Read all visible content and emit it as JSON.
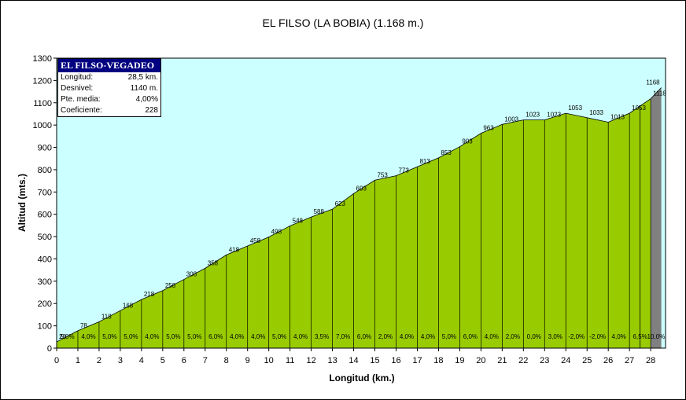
{
  "chart_data": {
    "type": "area",
    "title": "EL FILSO (LA BOBIA) (1.168 m.)",
    "xlabel": "Longitud (km.)",
    "ylabel": "Altitud (mts.)",
    "xlim": [
      0,
      28.7
    ],
    "ylim": [
      0,
      1300
    ],
    "x_ticks": [
      0,
      1,
      2,
      3,
      4,
      5,
      6,
      7,
      8,
      9,
      10,
      11,
      12,
      13,
      14,
      15,
      16,
      17,
      18,
      19,
      20,
      21,
      22,
      23,
      24,
      25,
      26,
      27,
      28
    ],
    "y_ticks": [
      0,
      100,
      200,
      300,
      400,
      500,
      600,
      700,
      800,
      900,
      1000,
      1100,
      1200,
      1300
    ],
    "profile": [
      {
        "km": 0,
        "alt": 28
      },
      {
        "km": 1,
        "alt": 78
      },
      {
        "km": 2,
        "alt": 118
      },
      {
        "km": 3,
        "alt": 168
      },
      {
        "km": 4,
        "alt": 218
      },
      {
        "km": 5,
        "alt": 258
      },
      {
        "km": 6,
        "alt": 308
      },
      {
        "km": 7,
        "alt": 358
      },
      {
        "km": 8,
        "alt": 418
      },
      {
        "km": 9,
        "alt": 458
      },
      {
        "km": 10,
        "alt": 498
      },
      {
        "km": 11,
        "alt": 548
      },
      {
        "km": 12,
        "alt": 588
      },
      {
        "km": 13,
        "alt": 623
      },
      {
        "km": 14,
        "alt": 693
      },
      {
        "km": 15,
        "alt": 753
      },
      {
        "km": 16,
        "alt": 773
      },
      {
        "km": 17,
        "alt": 813
      },
      {
        "km": 18,
        "alt": 853
      },
      {
        "km": 19,
        "alt": 903
      },
      {
        "km": 20,
        "alt": 963
      },
      {
        "km": 21,
        "alt": 1003
      },
      {
        "km": 22,
        "alt": 1023
      },
      {
        "km": 23,
        "alt": 1023
      },
      {
        "km": 24,
        "alt": 1053
      },
      {
        "km": 25,
        "alt": 1033
      },
      {
        "km": 26,
        "alt": 1013
      },
      {
        "km": 27,
        "alt": 1053
      },
      {
        "km": 28,
        "alt": 1118
      },
      {
        "km": 28.5,
        "alt": 1168
      }
    ],
    "gradients": [
      "5,0%",
      "4,0%",
      "5,0%",
      "5,0%",
      "4,0%",
      "5,0%",
      "5,0%",
      "6,0%",
      "4,0%",
      "4,0%",
      "5,0%",
      "4,0%",
      "3,5%",
      "7,0%",
      "6,0%",
      "2,0%",
      "4,0%",
      "4,0%",
      "5,0%",
      "6,0%",
      "4,0%",
      "2,0%",
      "0,0%",
      "3,0%",
      "-2,0%",
      "-2,0%",
      "4,0%",
      "6,5%",
      "10,0%"
    ],
    "highlight_from_km": 27.5,
    "colors": {
      "sky": "#CCFFFF",
      "fill": "#99CC00",
      "fill_final": "#808080",
      "line": "#000000",
      "gridline": "#000000"
    }
  },
  "infobox": {
    "title": "EL FILSO-VEGADEO",
    "rows": [
      {
        "label": "Longitud:",
        "value": "28,5 km."
      },
      {
        "label": "Desnivel:",
        "value": "1140 m."
      },
      {
        "label": "Pte. media:",
        "value": "4,00%"
      },
      {
        "label": "Coeficiente:",
        "value": "228"
      }
    ]
  }
}
